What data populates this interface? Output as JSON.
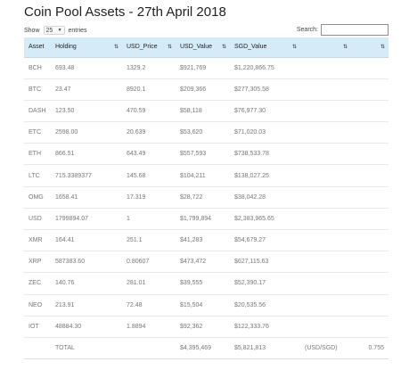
{
  "page": {
    "title": "Coin Pool Assets - 27th April 2018"
  },
  "controls": {
    "show_label": "Show",
    "page_length": "25",
    "entries_label": "entries",
    "search_label": "Search:",
    "search_value": ""
  },
  "table": {
    "columns": [
      "Asset",
      "Holding",
      "USD_Price",
      "USD_Value",
      "SGD_Value",
      "",
      ""
    ],
    "rows": [
      [
        "BCH",
        "693.48",
        "1329.2",
        "$921,769",
        "$1,220,866.75",
        "",
        ""
      ],
      [
        "BTC",
        "23.47",
        "8920.1",
        "$209,366",
        "$277,305.58",
        "",
        ""
      ],
      [
        "DASH",
        "123.50",
        "470.59",
        "$58,118",
        "$76,977.30",
        "",
        ""
      ],
      [
        "ETC",
        "2598.00",
        "20.639",
        "$53,620",
        "$71,020.03",
        "",
        ""
      ],
      [
        "ETH",
        "866.51",
        "643.49",
        "$557,593",
        "$738,533.78",
        "",
        ""
      ],
      [
        "LTC",
        "715.3389377",
        "145.68",
        "$104,211",
        "$138,027.25",
        "",
        ""
      ],
      [
        "OMG",
        "1658.41",
        "17.319",
        "$28,722",
        "$38,042.28",
        "",
        ""
      ],
      [
        "USD",
        "1799894.07",
        "1",
        "$1,799,894",
        "$2,383,965.65",
        "",
        ""
      ],
      [
        "XMR",
        "164.41",
        "251.1",
        "$41,283",
        "$54,679.27",
        "",
        ""
      ],
      [
        "XRP",
        "587383.60",
        "0.80607",
        "$473,472",
        "$627,115.63",
        "",
        ""
      ],
      [
        "ZEC",
        "140.76",
        "281.01",
        "$39,555",
        "$52,390.17",
        "",
        ""
      ],
      [
        "NEO",
        "213.91",
        "72.48",
        "$15,504",
        "$20,535.56",
        "",
        ""
      ],
      [
        "IOT",
        "48884.30",
        "1.8894",
        "$92,362",
        "$122,333.76",
        "",
        ""
      ]
    ],
    "total_row": [
      "",
      "TOTAL",
      "",
      "$4,395,469",
      "$5,821,813",
      "(USD/SGD)",
      "0.755"
    ]
  }
}
